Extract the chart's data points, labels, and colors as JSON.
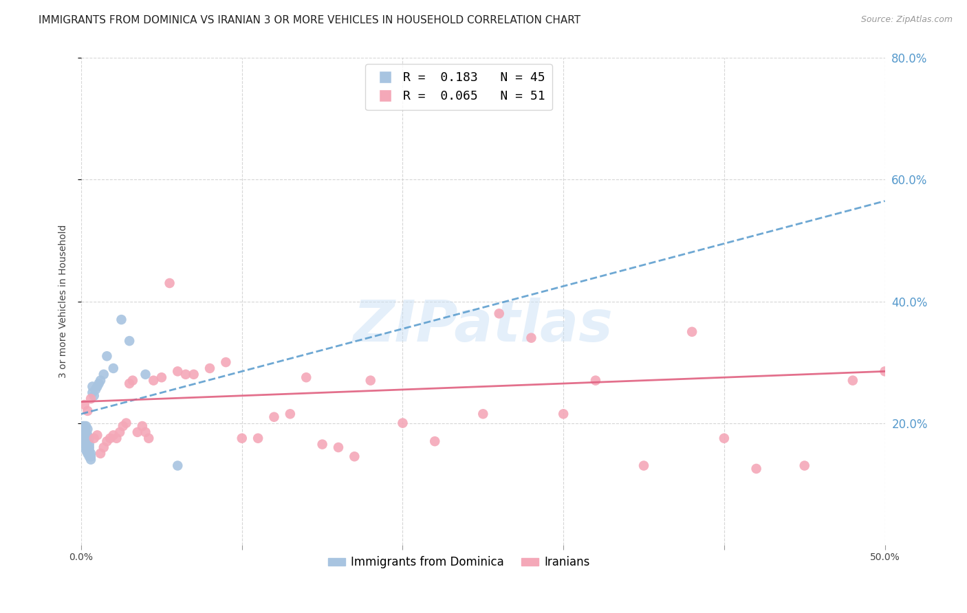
{
  "title": "IMMIGRANTS FROM DOMINICA VS IRANIAN 3 OR MORE VEHICLES IN HOUSEHOLD CORRELATION CHART",
  "source": "Source: ZipAtlas.com",
  "ylabel": "3 or more Vehicles in Household",
  "xlim": [
    0.0,
    0.5
  ],
  "ylim": [
    0.0,
    0.8
  ],
  "yticks_right": [
    0.2,
    0.4,
    0.6,
    0.8
  ],
  "ytick_right_labels": [
    "20.0%",
    "40.0%",
    "60.0%",
    "80.0%"
  ],
  "dominica_color": "#a8c4e0",
  "iranian_color": "#f4a8b8",
  "dominica_line_color": "#5599cc",
  "iranian_line_color": "#e06080",
  "background_color": "#ffffff",
  "grid_color": "#cccccc",
  "title_fontsize": 11,
  "axis_label_fontsize": 10,
  "tick_fontsize": 10,
  "right_tick_color": "#5599cc",
  "watermark": "ZIPatlas",
  "dominica_line_x": [
    0.0,
    0.5
  ],
  "dominica_line_y": [
    0.215,
    0.565
  ],
  "iranian_line_x": [
    0.0,
    0.5
  ],
  "iranian_line_y": [
    0.235,
    0.285
  ],
  "dominica_x": [
    0.001,
    0.001,
    0.001,
    0.002,
    0.002,
    0.002,
    0.002,
    0.002,
    0.003,
    0.003,
    0.003,
    0.003,
    0.003,
    0.003,
    0.003,
    0.004,
    0.004,
    0.004,
    0.004,
    0.004,
    0.004,
    0.004,
    0.005,
    0.005,
    0.005,
    0.005,
    0.005,
    0.005,
    0.006,
    0.006,
    0.006,
    0.007,
    0.007,
    0.008,
    0.009,
    0.01,
    0.011,
    0.012,
    0.014,
    0.016,
    0.02,
    0.025,
    0.03,
    0.04,
    0.06
  ],
  "dominica_y": [
    0.175,
    0.185,
    0.195,
    0.165,
    0.17,
    0.175,
    0.185,
    0.195,
    0.155,
    0.16,
    0.165,
    0.17,
    0.175,
    0.185,
    0.195,
    0.15,
    0.155,
    0.16,
    0.165,
    0.17,
    0.18,
    0.19,
    0.145,
    0.15,
    0.155,
    0.16,
    0.165,
    0.175,
    0.14,
    0.145,
    0.15,
    0.25,
    0.26,
    0.245,
    0.255,
    0.26,
    0.265,
    0.27,
    0.28,
    0.31,
    0.29,
    0.37,
    0.335,
    0.28,
    0.13
  ],
  "iranian_x": [
    0.002,
    0.004,
    0.006,
    0.008,
    0.01,
    0.012,
    0.014,
    0.016,
    0.018,
    0.02,
    0.022,
    0.024,
    0.026,
    0.028,
    0.03,
    0.032,
    0.035,
    0.038,
    0.04,
    0.042,
    0.045,
    0.05,
    0.055,
    0.06,
    0.065,
    0.07,
    0.08,
    0.09,
    0.1,
    0.11,
    0.12,
    0.13,
    0.14,
    0.15,
    0.16,
    0.17,
    0.18,
    0.2,
    0.22,
    0.25,
    0.28,
    0.3,
    0.32,
    0.35,
    0.38,
    0.4,
    0.42,
    0.45,
    0.48,
    0.5,
    0.26
  ],
  "iranian_y": [
    0.23,
    0.22,
    0.24,
    0.175,
    0.18,
    0.15,
    0.16,
    0.17,
    0.175,
    0.18,
    0.175,
    0.185,
    0.195,
    0.2,
    0.265,
    0.27,
    0.185,
    0.195,
    0.185,
    0.175,
    0.27,
    0.275,
    0.43,
    0.285,
    0.28,
    0.28,
    0.29,
    0.3,
    0.175,
    0.175,
    0.21,
    0.215,
    0.275,
    0.165,
    0.16,
    0.145,
    0.27,
    0.2,
    0.17,
    0.215,
    0.34,
    0.215,
    0.27,
    0.13,
    0.35,
    0.175,
    0.125,
    0.13,
    0.27,
    0.285,
    0.38
  ]
}
